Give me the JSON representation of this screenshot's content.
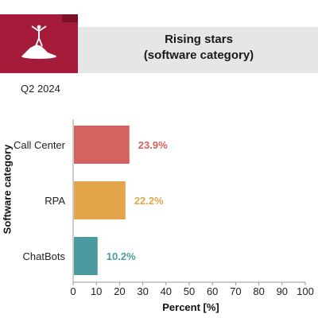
{
  "header": {
    "title_line1": "Rising stars",
    "title_line2": "(software category)",
    "logo_icon": "summit-figure-icon",
    "brand_color": "#a51c3a"
  },
  "period": "Q2 2024",
  "chart_data": {
    "type": "bar",
    "orientation": "horizontal",
    "categories": [
      "Call Center",
      "RPA",
      "ChatBots"
    ],
    "values": [
      23.9,
      22.2,
      10.2
    ],
    "value_labels": [
      "23.9%",
      "22.2%",
      "10.2%"
    ],
    "colors": [
      "#d4625e",
      "#e4a64a",
      "#4a9aa0"
    ],
    "xlabel": "Percent [%]",
    "ylabel": "Software category",
    "xlim": [
      0,
      100
    ],
    "xticks": [
      "0",
      "10",
      "20",
      "30",
      "40",
      "50",
      "60",
      "70",
      "80",
      "90",
      "100"
    ],
    "grid": false
  }
}
